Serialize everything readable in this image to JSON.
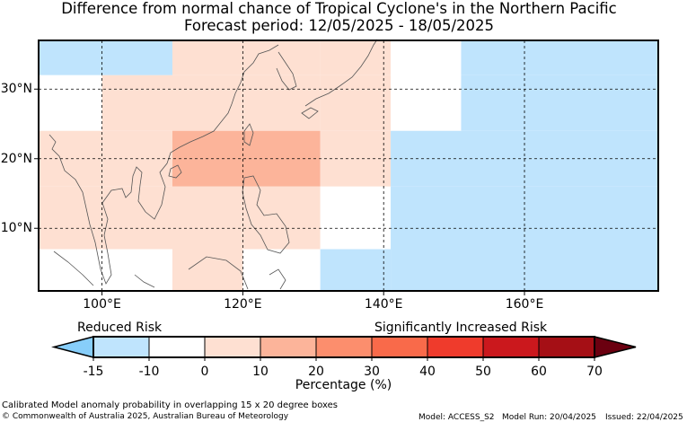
{
  "title": "Difference from normal chance of Tropical Cyclone's in the Northern Pacific",
  "subtitle": "Forecast period: 12/05/2025 - 18/05/2025",
  "map": {
    "lon_range": [
      91,
      179
    ],
    "lat_range": [
      1,
      37
    ],
    "lon_ticks": [
      {
        "value": 100,
        "label": "100°E"
      },
      {
        "value": 120,
        "label": "120°E"
      },
      {
        "value": 140,
        "label": "140°E"
      },
      {
        "value": 160,
        "label": "160°E"
      }
    ],
    "lat_ticks": [
      {
        "value": 10,
        "label": "10°N"
      },
      {
        "value": 20,
        "label": "20°N"
      },
      {
        "value": 30,
        "label": "30°N"
      }
    ],
    "cells": [
      {
        "lon": [
          91,
          110
        ],
        "lat": [
          32,
          37
        ],
        "value": -12.5
      },
      {
        "lon": [
          110,
          131
        ],
        "lat": [
          32,
          37
        ],
        "value": 0
      },
      {
        "lon": [
          131,
          141
        ],
        "lat": [
          32,
          37
        ],
        "value": 0
      },
      {
        "lon": [
          141,
          151
        ],
        "lat": [
          32,
          37
        ],
        "value": -5
      },
      {
        "lon": [
          151,
          179
        ],
        "lat": [
          32,
          37
        ],
        "value": -12.5
      },
      {
        "lon": [
          91,
          100
        ],
        "lat": [
          24,
          32
        ],
        "value": -5
      },
      {
        "lon": [
          100,
          110
        ],
        "lat": [
          24,
          32
        ],
        "value": 0
      },
      {
        "lon": [
          110,
          131
        ],
        "lat": [
          24,
          32
        ],
        "value": 5
      },
      {
        "lon": [
          131,
          141
        ],
        "lat": [
          24,
          32
        ],
        "value": 0
      },
      {
        "lon": [
          141,
          151
        ],
        "lat": [
          24,
          32
        ],
        "value": -5
      },
      {
        "lon": [
          151,
          179
        ],
        "lat": [
          24,
          32
        ],
        "value": -12.5
      },
      {
        "lon": [
          91,
          100
        ],
        "lat": [
          16,
          24
        ],
        "value": 0
      },
      {
        "lon": [
          100,
          110
        ],
        "lat": [
          16,
          24
        ],
        "value": 5
      },
      {
        "lon": [
          110,
          131
        ],
        "lat": [
          16,
          24
        ],
        "value": 15
      },
      {
        "lon": [
          131,
          141
        ],
        "lat": [
          16,
          24
        ],
        "value": 0
      },
      {
        "lon": [
          141,
          179
        ],
        "lat": [
          16,
          24
        ],
        "value": -12.5
      },
      {
        "lon": [
          91,
          100
        ],
        "lat": [
          7,
          16
        ],
        "value": 0
      },
      {
        "lon": [
          100,
          110
        ],
        "lat": [
          7,
          16
        ],
        "value": 0
      },
      {
        "lon": [
          110,
          131
        ],
        "lat": [
          7,
          16
        ],
        "value": 5
      },
      {
        "lon": [
          131,
          141
        ],
        "lat": [
          7,
          16
        ],
        "value": -5
      },
      {
        "lon": [
          141,
          179
        ],
        "lat": [
          7,
          16
        ],
        "value": -12.5
      },
      {
        "lon": [
          91,
          110
        ],
        "lat": [
          1,
          7
        ],
        "value": -5
      },
      {
        "lon": [
          110,
          120
        ],
        "lat": [
          1,
          7
        ],
        "value": 0
      },
      {
        "lon": [
          120,
          131
        ],
        "lat": [
          1,
          7
        ],
        "value": -5
      },
      {
        "lon": [
          131,
          141
        ],
        "lat": [
          1,
          7
        ],
        "value": -12.5
      },
      {
        "lon": [
          141,
          179
        ],
        "lat": [
          1,
          7
        ],
        "value": -12.5
      }
    ]
  },
  "colorbar": {
    "label_low": "Reduced Risk",
    "label_high": "Significantly Increased Risk",
    "title": "Percentage (%)",
    "under_color": "#87cefa",
    "over_color": "#6b0010",
    "bins": [
      {
        "from": -15,
        "to": -10,
        "color": "#bfe4fd"
      },
      {
        "from": -10,
        "to": 0,
        "color": "#ffffff"
      },
      {
        "from": 0,
        "to": 10,
        "color": "#fee0d2"
      },
      {
        "from": 10,
        "to": 20,
        "color": "#fcb49a"
      },
      {
        "from": 20,
        "to": 30,
        "color": "#fc8e6d"
      },
      {
        "from": 30,
        "to": 40,
        "color": "#f96a4a"
      },
      {
        "from": 40,
        "to": 50,
        "color": "#ef3b2c"
      },
      {
        "from": 50,
        "to": 60,
        "color": "#cb181d"
      },
      {
        "from": 60,
        "to": 70,
        "color": "#a50f15"
      }
    ],
    "ticks": [
      "-15",
      "-10",
      "0",
      "10",
      "20",
      "30",
      "40",
      "50",
      "60",
      "70"
    ]
  },
  "footer": {
    "line1": "Calibrated Model anomaly probability in overlapping 15 x 20 degree boxes",
    "copyright": "© Commonwealth of Australia 2025, Australian Bureau of Meteorology",
    "model": "Model: ACCESS_S2",
    "model_run": "Model Run: 20/04/2025",
    "issued": "Issued: 22/04/2025"
  }
}
